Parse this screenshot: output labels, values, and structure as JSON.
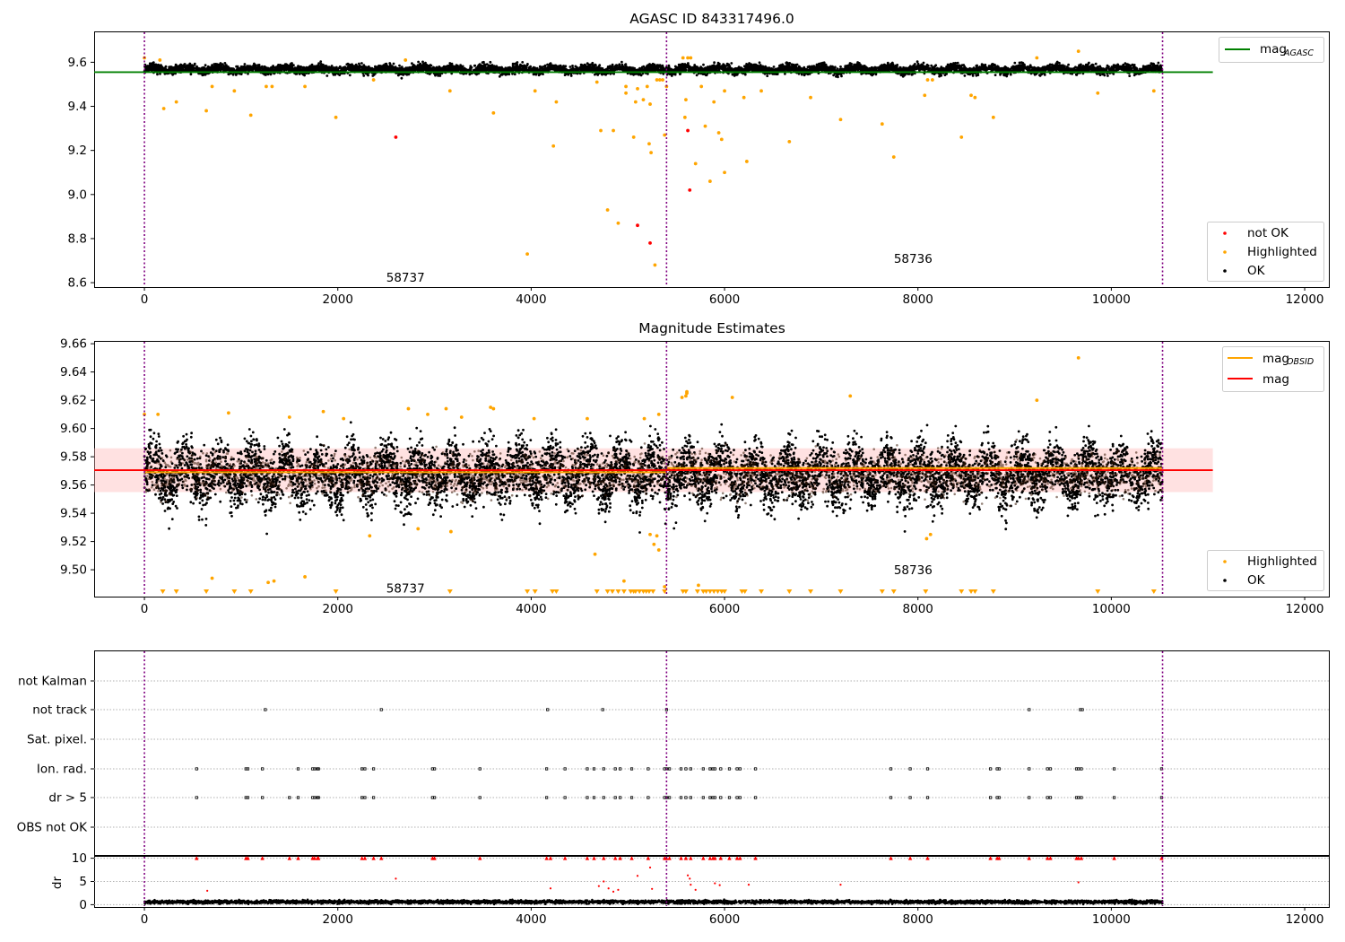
{
  "figure": {
    "colors": {
      "ok": "#000000",
      "highlighted": "#ffa500",
      "not_ok": "#ff0000",
      "agasc_line": "#008000",
      "mag_line": "#ff0000",
      "obsid_line": "#ffa500",
      "band": "#ffb3b3",
      "vline": "#800080",
      "grid": "#b0b0b0"
    }
  },
  "chart_data": [
    {
      "id": "p1",
      "type": "scatter",
      "title": "AGASC ID 843317496.0",
      "xlim": [
        -520,
        12250
      ],
      "ylim": [
        8.58,
        9.74
      ],
      "xticks": [
        0,
        2000,
        4000,
        6000,
        8000,
        10000,
        12000
      ],
      "xtick_labels": [
        "0",
        "2000",
        "4000",
        "6000",
        "8000",
        "10000",
        "12000"
      ],
      "yticks": [
        8.6,
        8.8,
        9.0,
        9.2,
        9.4,
        9.6
      ],
      "ytick_labels": [
        "8.6",
        "8.8",
        "9.0",
        "9.2",
        "9.4",
        "9.6"
      ],
      "vlines": [
        0,
        5400,
        10530
      ],
      "hlines": [
        {
          "name": "mag",
          "sub": "AGASC",
          "y": 9.555,
          "x_end": 11050,
          "color": "#008000"
        }
      ],
      "annotations": [
        {
          "text": "58737",
          "x": 2700,
          "y": 8.625
        },
        {
          "text": "58736",
          "x": 7950,
          "y": 8.71
        }
      ],
      "ok_band": {
        "x_start": 0,
        "x_end": 10530,
        "mean": 9.568,
        "spread": 0.024
      },
      "legends": [
        {
          "placement": "upper right",
          "entries": [
            {
              "label": "mag",
              "sub": "AGASC",
              "kind": "line",
              "color": "#008000"
            }
          ]
        },
        {
          "placement": "lower right",
          "entries": [
            {
              "label": "not OK",
              "kind": "marker",
              "color": "#ff0000"
            },
            {
              "label": "Highlighted",
              "kind": "marker",
              "color": "#ffa500"
            },
            {
              "label": "OK",
              "kind": "marker",
              "color": "#000000"
            }
          ]
        }
      ],
      "series": [
        {
          "name": "Highlighted",
          "color": "#ffa500",
          "points": [
            [
              0,
              9.62
            ],
            [
              160,
              9.61
            ],
            [
              200,
              9.39
            ],
            [
              330,
              9.42
            ],
            [
              640,
              9.38
            ],
            [
              700,
              9.49
            ],
            [
              930,
              9.47
            ],
            [
              1100,
              9.36
            ],
            [
              1260,
              9.49
            ],
            [
              1320,
              9.49
            ],
            [
              1660,
              9.49
            ],
            [
              1980,
              9.35
            ],
            [
              2370,
              9.52
            ],
            [
              2700,
              9.61
            ],
            [
              3160,
              9.47
            ],
            [
              3610,
              9.37
            ],
            [
              3960,
              8.73
            ],
            [
              4040,
              9.47
            ],
            [
              4230,
              9.22
            ],
            [
              4260,
              9.42
            ],
            [
              4680,
              9.51
            ],
            [
              4720,
              9.29
            ],
            [
              4790,
              8.93
            ],
            [
              4850,
              9.29
            ],
            [
              4900,
              8.87
            ],
            [
              4980,
              9.46
            ],
            [
              4980,
              9.49
            ],
            [
              5060,
              9.26
            ],
            [
              5080,
              9.42
            ],
            [
              5100,
              9.48
            ],
            [
              5160,
              9.43
            ],
            [
              5200,
              9.49
            ],
            [
              5220,
              9.23
            ],
            [
              5230,
              9.41
            ],
            [
              5240,
              9.19
            ],
            [
              5280,
              8.68
            ],
            [
              5300,
              9.52
            ],
            [
              5330,
              9.52
            ],
            [
              5360,
              9.52
            ],
            [
              5380,
              9.27
            ],
            [
              5400,
              9.49
            ],
            [
              5570,
              9.62
            ],
            [
              5590,
              9.35
            ],
            [
              5600,
              9.43
            ],
            [
              5620,
              9.62
            ],
            [
              5650,
              9.62
            ],
            [
              5700,
              9.14
            ],
            [
              5760,
              9.49
            ],
            [
              5800,
              9.31
            ],
            [
              5850,
              9.06
            ],
            [
              5890,
              9.42
            ],
            [
              5940,
              9.28
            ],
            [
              5970,
              9.25
            ],
            [
              6000,
              9.1
            ],
            [
              6000,
              9.47
            ],
            [
              6200,
              9.44
            ],
            [
              6230,
              9.15
            ],
            [
              6380,
              9.47
            ],
            [
              6670,
              9.24
            ],
            [
              6890,
              9.44
            ],
            [
              7200,
              9.34
            ],
            [
              7630,
              9.32
            ],
            [
              7750,
              9.17
            ],
            [
              8070,
              9.45
            ],
            [
              8100,
              9.52
            ],
            [
              8150,
              9.52
            ],
            [
              8450,
              9.26
            ],
            [
              8550,
              9.45
            ],
            [
              8590,
              9.44
            ],
            [
              8780,
              9.35
            ],
            [
              9230,
              9.62
            ],
            [
              9660,
              9.65
            ],
            [
              9860,
              9.46
            ],
            [
              10440,
              9.47
            ]
          ]
        },
        {
          "name": "not OK",
          "color": "#ff0000",
          "points": [
            [
              2600,
              9.26
            ],
            [
              5100,
              8.86
            ],
            [
              5230,
              8.78
            ],
            [
              5620,
              9.29
            ],
            [
              5640,
              9.02
            ]
          ]
        }
      ]
    },
    {
      "id": "p2",
      "type": "scatter",
      "title": "Magnitude Estimates",
      "xlim": [
        -520,
        12250
      ],
      "ylim": [
        9.481,
        9.662
      ],
      "xticks": [
        0,
        2000,
        4000,
        6000,
        8000,
        10000,
        12000
      ],
      "xtick_labels": [
        "0",
        "2000",
        "4000",
        "6000",
        "8000",
        "10000",
        "12000"
      ],
      "yticks": [
        9.5,
        9.52,
        9.54,
        9.56,
        9.58,
        9.6,
        9.62,
        9.64,
        9.66
      ],
      "ytick_labels": [
        "9.50",
        "9.52",
        "9.54",
        "9.56",
        "9.58",
        "9.60",
        "9.62",
        "9.64",
        "9.66"
      ],
      "vlines": [
        0,
        5400,
        10530
      ],
      "band": {
        "y_low": 9.555,
        "y_high": 9.586,
        "x_start": -520,
        "x_end": 11050,
        "color": "#ffb3b3"
      },
      "hlines": [
        {
          "name": "mag",
          "y": 9.5705,
          "x_start": -520,
          "x_end": 11050,
          "color": "#ff0000"
        },
        {
          "name": "mag",
          "sub": "OBSID",
          "segments": [
            [
              0,
              5400,
              9.569
            ],
            [
              5400,
              10530,
              9.572
            ]
          ],
          "color": "#ffa500"
        }
      ],
      "annotations": [
        {
          "text": "58737",
          "x": 2700,
          "y": 9.487
        },
        {
          "text": "58736",
          "x": 7950,
          "y": 9.5
        }
      ],
      "ok_band": {
        "x_start": 0,
        "x_end": 10530,
        "mean": 9.5675,
        "spread": 0.026
      },
      "legends": [
        {
          "placement": "upper right",
          "entries": [
            {
              "label": "mag",
              "sub": "OBSID",
              "kind": "line",
              "color": "#ffa500"
            },
            {
              "label": "mag",
              "kind": "line",
              "color": "#ff0000"
            }
          ]
        },
        {
          "placement": "lower right",
          "entries": [
            {
              "label": "Highlighted",
              "kind": "marker",
              "color": "#ffa500"
            },
            {
              "label": "OK",
              "kind": "marker",
              "color": "#000000"
            }
          ]
        }
      ],
      "below_axis_markers": {
        "color": "#ffa500",
        "x": [
          190,
          330,
          640,
          930,
          1100,
          1980,
          3160,
          3960,
          4040,
          4220,
          4260,
          4680,
          4790,
          4840,
          4900,
          4960,
          5030,
          5060,
          5080,
          5120,
          5160,
          5190,
          5220,
          5260,
          5380,
          5570,
          5600,
          5720,
          5780,
          5810,
          5850,
          5890,
          5930,
          5970,
          6000,
          6180,
          6210,
          6380,
          6670,
          6890,
          7200,
          7630,
          7750,
          8080,
          8450,
          8550,
          8590,
          8780,
          9860,
          10440
        ]
      },
      "series": [
        {
          "name": "Highlighted",
          "color": "#ffa500",
          "points": [
            [
              0,
              9.61
            ],
            [
              140,
              9.61
            ],
            [
              700,
              9.494
            ],
            [
              870,
              9.611
            ],
            [
              1280,
              9.491
            ],
            [
              1340,
              9.492
            ],
            [
              1500,
              9.608
            ],
            [
              1660,
              9.495
            ],
            [
              1850,
              9.612
            ],
            [
              2060,
              9.607
            ],
            [
              2330,
              9.524
            ],
            [
              2730,
              9.614
            ],
            [
              2830,
              9.529
            ],
            [
              2930,
              9.61
            ],
            [
              3120,
              9.614
            ],
            [
              3170,
              9.527
            ],
            [
              3280,
              9.608
            ],
            [
              3580,
              9.615
            ],
            [
              3610,
              9.614
            ],
            [
              4030,
              9.607
            ],
            [
              4580,
              9.607
            ],
            [
              4660,
              9.511
            ],
            [
              4960,
              9.492
            ],
            [
              5170,
              9.607
            ],
            [
              5230,
              9.525
            ],
            [
              5270,
              9.518
            ],
            [
              5300,
              9.524
            ],
            [
              5320,
              9.514
            ],
            [
              5320,
              9.61
            ],
            [
              5380,
              9.488
            ],
            [
              5560,
              9.622
            ],
            [
              5600,
              9.623
            ],
            [
              5610,
              9.625
            ],
            [
              5610,
              9.626
            ],
            [
              5730,
              9.489
            ],
            [
              6080,
              9.622
            ],
            [
              7300,
              9.623
            ],
            [
              8090,
              9.522
            ],
            [
              8130,
              9.525
            ],
            [
              9230,
              9.62
            ],
            [
              9660,
              9.65
            ]
          ]
        }
      ]
    },
    {
      "id": "p3",
      "type": "scatter",
      "title": "",
      "xlim": [
        -520,
        12250
      ],
      "categories": [
        "not Kalman",
        "not track",
        "Sat. pixel.",
        "Ion. rad.",
        "dr > 5",
        "OBS not OK"
      ],
      "vlines": [
        0,
        5400,
        10530
      ],
      "flags": {
        "not track": [
          1250,
          2450,
          4170,
          4740,
          5400,
          9150,
          9680,
          9700
        ],
        "Ion. rad.": [
          540,
          1050,
          1070,
          1220,
          1590,
          1740,
          1760,
          1790,
          1800,
          2250,
          2280,
          2370,
          2980,
          3000,
          3470,
          4160,
          4350,
          4580,
          4650,
          4750,
          4870,
          4920,
          5040,
          5210,
          5380,
          5400,
          5430,
          5550,
          5600,
          5650,
          5780,
          5850,
          5880,
          5900,
          5960,
          6050,
          6130,
          6160,
          6320,
          7720,
          7920,
          8100,
          8750,
          8820,
          8840,
          9150,
          9340,
          9370,
          9640,
          9660,
          9690,
          10030,
          10520
        ],
        "dr > 5": [
          540,
          1050,
          1070,
          1220,
          1500,
          1590,
          1740,
          1760,
          1790,
          1800,
          2250,
          2280,
          2370,
          2980,
          3000,
          3470,
          4160,
          4350,
          4580,
          4650,
          4750,
          4870,
          4920,
          5040,
          5210,
          5380,
          5400,
          5430,
          5550,
          5600,
          5650,
          5780,
          5850,
          5880,
          5900,
          5960,
          6050,
          6130,
          6160,
          6320,
          7720,
          7920,
          8100,
          8750,
          8820,
          8840,
          9150,
          9340,
          9370,
          9640,
          9660,
          9690,
          10030,
          10520
        ]
      }
    },
    {
      "id": "p4",
      "type": "scatter",
      "title": "",
      "xlim": [
        -520,
        12250
      ],
      "ylim": [
        -0.5,
        10.5
      ],
      "ylabel": "dr",
      "xticks": [
        0,
        2000,
        4000,
        6000,
        8000,
        10000,
        12000
      ],
      "xtick_labels": [
        "0",
        "2000",
        "4000",
        "6000",
        "8000",
        "10000",
        "12000"
      ],
      "yticks": [
        0,
        5,
        10
      ],
      "ytick_labels": [
        "0",
        "5",
        "10"
      ],
      "vlines": [
        0,
        5400,
        10530
      ],
      "ok_band": {
        "x_start": 0,
        "x_end": 10530,
        "mean": 0.6,
        "spread": 0.45
      },
      "capped": {
        "y": 10,
        "color": "#ff0000",
        "x": [
          540,
          1050,
          1070,
          1220,
          1500,
          1590,
          1740,
          1760,
          1790,
          1800,
          2250,
          2280,
          2370,
          2450,
          2980,
          3000,
          3470,
          4160,
          4200,
          4350,
          4580,
          4650,
          4750,
          4870,
          4920,
          5040,
          5210,
          5380,
          5400,
          5430,
          5550,
          5600,
          5650,
          5780,
          5850,
          5880,
          5900,
          5960,
          6050,
          6130,
          6160,
          6320,
          7720,
          7920,
          8100,
          8750,
          8820,
          8840,
          9150,
          9340,
          9370,
          9640,
          9660,
          9690,
          10030,
          10520
        ]
      },
      "series": [
        {
          "name": "not OK",
          "color": "#ff0000",
          "points": [
            [
              650,
              3.0
            ],
            [
              2600,
              5.6
            ],
            [
              4200,
              3.5
            ],
            [
              4700,
              4.0
            ],
            [
              4750,
              5.0
            ],
            [
              4800,
              3.5
            ],
            [
              4850,
              2.8
            ],
            [
              4900,
              3.2
            ],
            [
              5100,
              6.2
            ],
            [
              5230,
              8.0
            ],
            [
              5250,
              3.4
            ],
            [
              5620,
              6.3
            ],
            [
              5640,
              5.6
            ],
            [
              5650,
              4.3
            ],
            [
              5700,
              3.2
            ],
            [
              5900,
              4.6
            ],
            [
              5950,
              4.2
            ],
            [
              6250,
              4.3
            ],
            [
              7200,
              4.3
            ],
            [
              9660,
              4.8
            ]
          ]
        }
      ]
    }
  ]
}
